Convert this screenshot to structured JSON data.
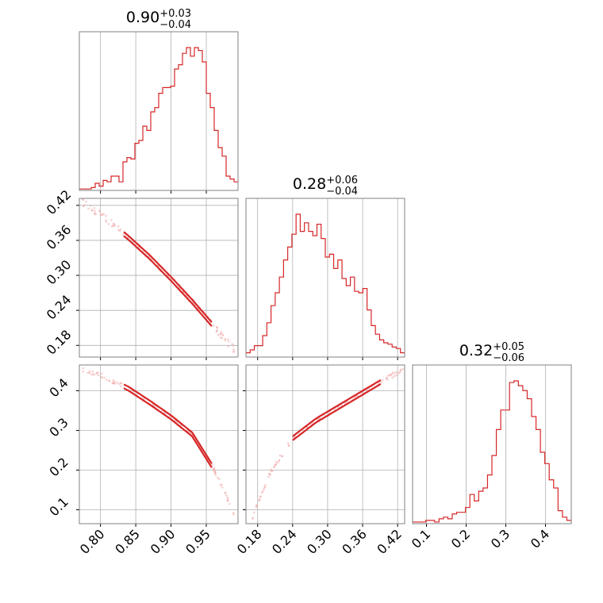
{
  "colors": {
    "line": "#d62728",
    "scatter": "#f1a9a9",
    "grid": "#b0b0b0",
    "frame": "#808080",
    "background": "#ffffff"
  },
  "chart_data": {
    "type": "corner",
    "grid": true,
    "parameters": [
      {
        "title_value": "0.90",
        "err_plus": "+0.03",
        "err_minus": "−0.04",
        "range": [
          0.77,
          0.995
        ],
        "ticks": [
          0.8,
          0.85,
          0.9,
          0.95
        ],
        "tick_labels": [
          "0.80",
          "0.85",
          "0.90",
          "0.95"
        ]
      },
      {
        "title_value": "0.28",
        "err_plus": "+0.06",
        "err_minus": "−0.04",
        "range": [
          0.16,
          0.432
        ],
        "ticks": [
          0.18,
          0.24,
          0.3,
          0.36,
          0.42
        ],
        "tick_labels": [
          "0.18",
          "0.24",
          "0.30",
          "0.36",
          "0.42"
        ]
      },
      {
        "title_value": "0.32",
        "err_plus": "+0.05",
        "err_minus": "−0.06",
        "range": [
          0.065,
          0.465
        ],
        "ticks": [
          0.1,
          0.2,
          0.3,
          0.4
        ],
        "tick_labels": [
          "0.1",
          "0.2",
          "0.3",
          "0.4"
        ]
      }
    ],
    "histograms": [
      [
        1,
        1,
        1,
        2,
        5,
        3,
        7,
        6,
        10,
        10,
        6,
        20,
        23,
        22,
        33,
        35,
        45,
        42,
        55,
        58,
        68,
        72,
        72,
        73,
        85,
        88,
        96,
        100,
        94,
        100,
        98,
        90,
        68,
        58,
        42,
        30,
        24,
        10,
        8,
        6
      ],
      [
        3,
        5,
        8,
        8,
        15,
        24,
        36,
        45,
        56,
        68,
        77,
        86,
        100,
        88,
        94,
        88,
        85,
        93,
        83,
        70,
        72,
        62,
        68,
        55,
        50,
        56,
        46,
        45,
        48,
        33,
        22,
        16,
        12,
        10,
        9,
        7,
        6,
        3
      ],
      [
        1,
        1,
        1,
        2,
        2,
        1,
        3,
        4,
        3,
        6,
        7,
        7,
        10,
        18,
        14,
        20,
        22,
        30,
        42,
        58,
        70,
        70,
        87,
        88,
        85,
        82,
        77,
        66,
        58,
        44,
        37,
        27,
        22,
        8,
        4,
        2
      ]
    ],
    "pairs": [
      {
        "x_param": 0,
        "y_param": 1,
        "curve": {
          "x": [
            0.775,
            0.8,
            0.84,
            0.87,
            0.9,
            0.93,
            0.96,
            0.99
          ],
          "y": [
            0.425,
            0.405,
            0.364,
            0.331,
            0.294,
            0.255,
            0.213,
            0.172
          ]
        }
      },
      {
        "x_param": 0,
        "y_param": 2,
        "curve": {
          "x": [
            0.775,
            0.8,
            0.84,
            0.87,
            0.9,
            0.93,
            0.96,
            0.99
          ],
          "y": [
            0.453,
            0.44,
            0.405,
            0.37,
            0.333,
            0.29,
            0.205,
            0.09
          ]
        }
      },
      {
        "x_param": 1,
        "y_param": 2,
        "curve": {
          "x": [
            0.17,
            0.2,
            0.24,
            0.28,
            0.32,
            0.36,
            0.4,
            0.43
          ],
          "y": [
            0.075,
            0.19,
            0.28,
            0.325,
            0.36,
            0.395,
            0.43,
            0.455
          ]
        }
      }
    ]
  }
}
